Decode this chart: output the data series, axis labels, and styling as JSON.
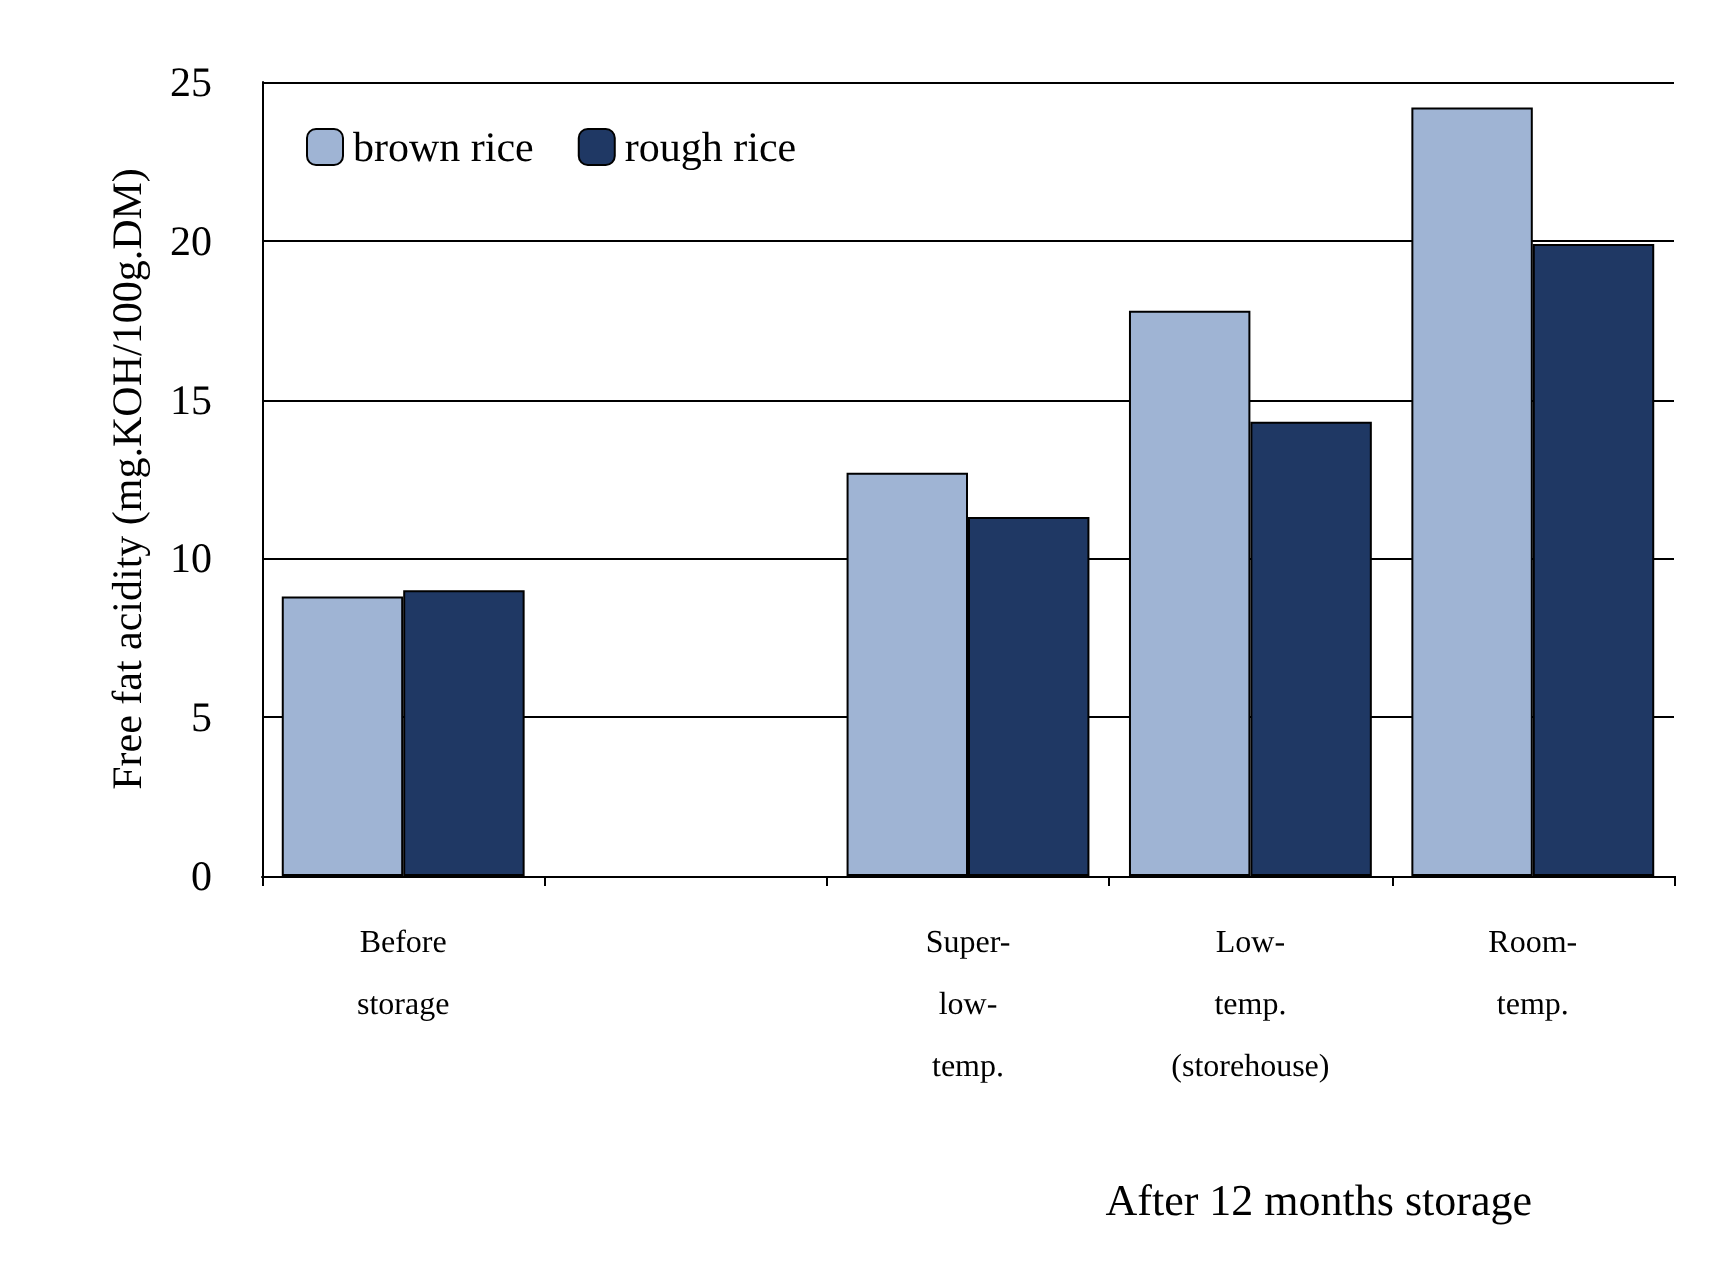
{
  "chart_data": {
    "type": "bar",
    "categories": [
      "Before\nstorage",
      null,
      "Super-\nlow-\ntemp.",
      "Low-\ntemp.\n(storehouse)",
      "Room-\ntemp."
    ],
    "series": [
      {
        "name": "brown rice",
        "color": "#9fb4d4",
        "values": [
          8.8,
          null,
          12.7,
          17.8,
          24.2
        ]
      },
      {
        "name": "rough rice",
        "color": "#1f3864",
        "values": [
          9.0,
          null,
          11.3,
          14.3,
          19.9
        ]
      }
    ],
    "xlabel": "After 12 months storage",
    "ylabel": "Free fat acidity (mg.KOH/100g.DM)",
    "ylim": [
      0,
      25
    ],
    "yticks": [
      0,
      5,
      10,
      15,
      20,
      25
    ],
    "grid": "y",
    "legend": "top left"
  }
}
